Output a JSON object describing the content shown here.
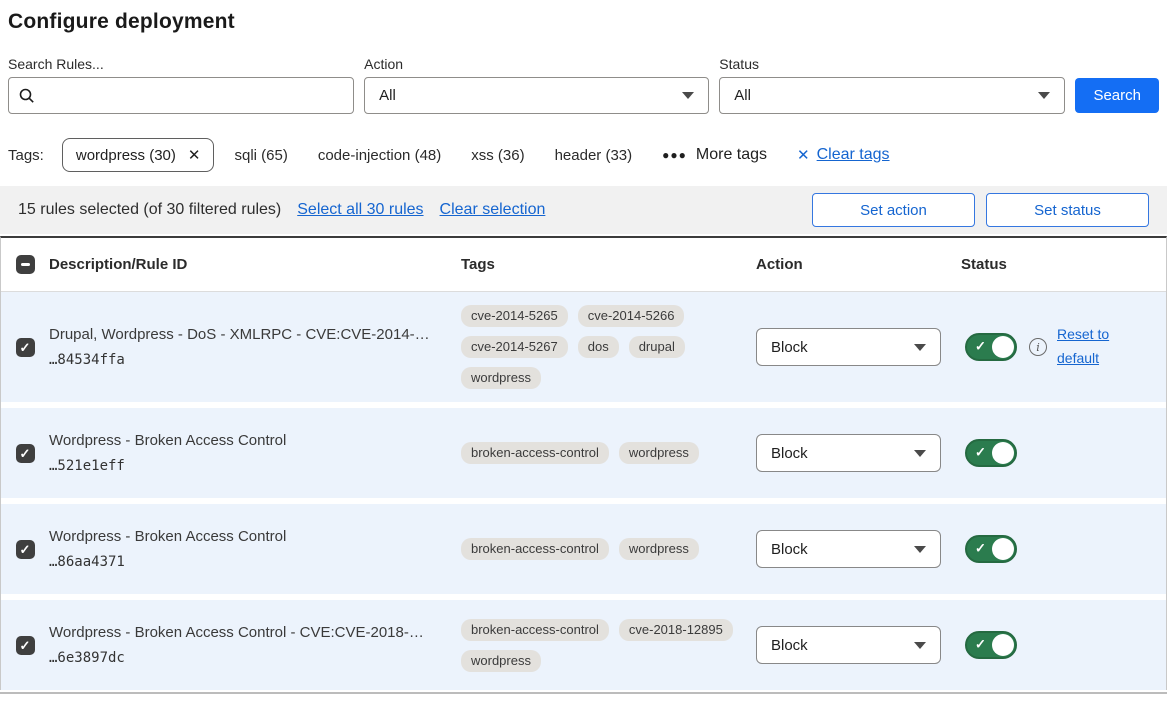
{
  "page": {
    "title": "Configure deployment"
  },
  "filters": {
    "search": {
      "label": "Search Rules...",
      "value": "",
      "placeholder": ""
    },
    "action": {
      "label": "Action",
      "value": "All"
    },
    "status": {
      "label": "Status",
      "value": "All"
    },
    "search_button": "Search"
  },
  "tags_bar": {
    "label": "Tags:",
    "selected_tag": "wordpress (30)",
    "tags": [
      "sqli (65)",
      "code-injection (48)",
      "xss (36)",
      "header (33)"
    ],
    "more_tags_label": "More tags",
    "clear_tags_label": "Clear tags"
  },
  "selection_bar": {
    "summary": "15 rules selected (of 30 filtered rules)",
    "select_all_label": "Select all 30 rules",
    "clear_selection_label": "Clear selection",
    "set_action_label": "Set action",
    "set_status_label": "Set status"
  },
  "table": {
    "headers": {
      "description": "Description/Rule ID",
      "tags": "Tags",
      "action": "Action",
      "status": "Status"
    },
    "rows": [
      {
        "description": "Drupal, Wordpress - DoS - XMLRPC - CVE:CVE-2014-…",
        "rule_id": "…84534ffa",
        "tags": [
          "cve-2014-5265",
          "cve-2014-5266",
          "cve-2014-5267",
          "dos",
          "drupal",
          "wordpress"
        ],
        "action": "Block",
        "checked": true,
        "enabled": true,
        "has_reset": true,
        "reset_label": "Reset to default"
      },
      {
        "description": "Wordpress - Broken Access Control",
        "rule_id": "…521e1eff",
        "tags": [
          "broken-access-control",
          "wordpress"
        ],
        "action": "Block",
        "checked": true,
        "enabled": true,
        "has_reset": false
      },
      {
        "description": "Wordpress - Broken Access Control",
        "rule_id": "…86aa4371",
        "tags": [
          "broken-access-control",
          "wordpress"
        ],
        "action": "Block",
        "checked": true,
        "enabled": true,
        "has_reset": false
      },
      {
        "description": "Wordpress - Broken Access Control - CVE:CVE-2018-…",
        "rule_id": "…6e3897dc",
        "tags": [
          "broken-access-control",
          "cve-2018-12895",
          "wordpress"
        ],
        "action": "Block",
        "checked": true,
        "enabled": true,
        "has_reset": false
      }
    ]
  },
  "colors": {
    "accent_blue": "#146ef4",
    "link_blue": "#1565d0",
    "toggle_green": "#2b7c4e",
    "row_background": "#ecf3fc",
    "tag_pill_background": "#e3e1dd"
  }
}
